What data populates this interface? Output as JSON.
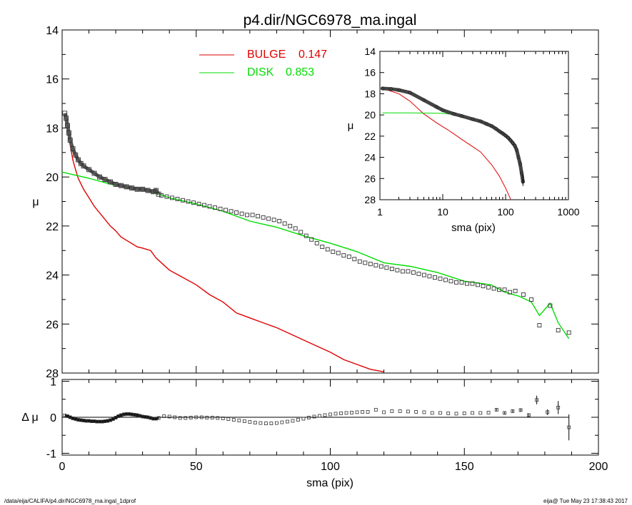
{
  "title": "p4.dir/NGC6978_ma.ingal",
  "footer": {
    "path": "/data/eija/CALIFA/p4.dir/NGC6978_ma.ingal_1dprof",
    "stamp": "eija@  Tue May 23 17:38:43 2017"
  },
  "colors": {
    "bulge": "#e00000",
    "disk": "#00dd00",
    "data": "#000000"
  },
  "chart_data": [
    {
      "type": "line",
      "panel": "main",
      "title": "p4.dir/NGC6978_ma.ingal",
      "xlabel": "",
      "ylabel": "μ",
      "xlim": [
        0,
        200
      ],
      "ylim": [
        28,
        14
      ],
      "y_inverted": true,
      "x_ticks": [
        0,
        50,
        100,
        150,
        200
      ],
      "y_ticks": [
        14,
        16,
        18,
        20,
        22,
        24,
        26,
        28
      ],
      "legend": {
        "placement": "top-center",
        "entries": [
          {
            "label": "BULGE",
            "value": "0.147",
            "color": "#e00000"
          },
          {
            "label": "DISK",
            "value": "0.853",
            "color": "#00dd00"
          }
        ]
      },
      "series": [
        {
          "name": "BULGE",
          "style": "line",
          "x": [
            1,
            2,
            3,
            4,
            5,
            6,
            8,
            10,
            12,
            15,
            18,
            20,
            22,
            25,
            28,
            30,
            33,
            35,
            38,
            40,
            45,
            50,
            55,
            60,
            65,
            70,
            75,
            80,
            85,
            90,
            95,
            100,
            105,
            110,
            115,
            120
          ],
          "y": [
            17.4,
            18.1,
            18.7,
            19.3,
            19.7,
            20.05,
            20.5,
            20.85,
            21.2,
            21.6,
            22.0,
            22.2,
            22.45,
            22.65,
            22.85,
            22.9,
            23.0,
            23.3,
            23.6,
            23.8,
            24.1,
            24.4,
            24.8,
            25.1,
            25.55,
            25.75,
            25.95,
            26.15,
            26.4,
            26.65,
            26.9,
            27.15,
            27.45,
            27.65,
            27.85,
            27.95
          ]
        },
        {
          "name": "DISK",
          "style": "line",
          "x": [
            0,
            10,
            20,
            30,
            35,
            40,
            50,
            60,
            70,
            80,
            90,
            100,
            110,
            120,
            130,
            140,
            150,
            160,
            165,
            170,
            175,
            178,
            182,
            185,
            189
          ],
          "y": [
            19.8,
            20.05,
            20.35,
            20.55,
            20.65,
            20.85,
            21.1,
            21.4,
            21.8,
            22.05,
            22.4,
            22.7,
            23.05,
            23.5,
            23.65,
            23.9,
            24.25,
            24.4,
            24.7,
            24.85,
            25.1,
            25.65,
            25.15,
            25.95,
            26.6
          ]
        },
        {
          "name": "data",
          "style": "points-dense",
          "x": [
            1,
            1.5,
            2,
            2.5,
            3,
            4,
            5,
            6,
            7,
            8,
            10,
            12,
            14,
            16,
            18,
            20,
            22,
            24,
            26,
            28,
            30,
            32,
            34,
            35,
            36
          ],
          "y": [
            17.4,
            17.6,
            17.9,
            18.2,
            18.5,
            18.85,
            19.1,
            19.3,
            19.45,
            19.55,
            19.7,
            19.85,
            20.0,
            20.1,
            20.2,
            20.3,
            20.35,
            20.4,
            20.45,
            20.5,
            20.5,
            20.55,
            20.6,
            20.55,
            20.7
          ]
        },
        {
          "name": "data",
          "style": "points-sparse",
          "x": [
            37,
            39,
            41,
            43,
            45,
            47,
            49,
            51,
            53,
            55,
            57,
            59,
            61,
            63,
            65,
            67,
            69,
            71,
            73,
            75,
            77,
            79,
            81,
            83,
            85,
            87,
            89,
            91,
            93,
            95,
            97,
            99,
            101,
            103,
            105,
            107,
            109,
            111,
            113,
            115,
            117,
            119,
            121,
            123,
            125,
            127,
            129,
            131,
            133,
            135,
            137,
            139,
            141,
            143,
            145,
            147,
            149,
            151,
            153,
            155,
            157,
            159,
            161,
            163,
            165,
            167,
            169,
            172,
            175,
            178,
            182,
            185,
            189
          ],
          "y": [
            20.75,
            20.8,
            20.85,
            20.9,
            20.95,
            21.0,
            21.05,
            21.1,
            21.15,
            21.2,
            21.25,
            21.3,
            21.35,
            21.4,
            21.45,
            21.5,
            21.55,
            21.55,
            21.6,
            21.65,
            21.7,
            21.75,
            21.8,
            21.9,
            22.0,
            22.1,
            22.25,
            22.4,
            22.55,
            22.7,
            22.85,
            22.95,
            23.05,
            23.1,
            23.2,
            23.25,
            23.35,
            23.45,
            23.5,
            23.55,
            23.6,
            23.65,
            23.7,
            23.75,
            23.8,
            23.85,
            23.85,
            23.9,
            23.95,
            24.0,
            24.05,
            24.1,
            24.15,
            24.2,
            24.25,
            24.3,
            24.3,
            24.35,
            24.35,
            24.4,
            24.45,
            24.5,
            24.55,
            24.6,
            24.6,
            24.7,
            24.65,
            24.8,
            25.0,
            26.05,
            25.25,
            26.25,
            26.35
          ]
        }
      ]
    },
    {
      "type": "line",
      "panel": "inset",
      "xlabel": "sma (pix)",
      "ylabel": "μ",
      "xscale": "log",
      "xlim": [
        1,
        1000
      ],
      "ylim": [
        28,
        14
      ],
      "y_inverted": true,
      "x_ticks": [
        1,
        10,
        100,
        1000
      ],
      "y_ticks": [
        14,
        16,
        18,
        20,
        22,
        24,
        26,
        28
      ],
      "series": [
        {
          "name": "BULGE",
          "style": "line",
          "x": [
            1.1,
            2,
            3,
            5,
            8,
            12,
            20,
            30,
            40,
            60,
            80,
            100,
            120
          ],
          "y": [
            17.5,
            18.0,
            18.7,
            19.9,
            20.75,
            21.4,
            22.3,
            23.0,
            23.5,
            24.7,
            25.8,
            26.9,
            27.95
          ]
        },
        {
          "name": "DISK",
          "style": "line",
          "x": [
            1.1,
            3,
            10,
            20,
            30,
            40
          ],
          "y": [
            19.8,
            19.8,
            19.85,
            20.05,
            20.35,
            20.55
          ]
        },
        {
          "name": "data",
          "style": "thick",
          "x": [
            1.1,
            1.5,
            2,
            3,
            5,
            8,
            10,
            15,
            20,
            30,
            40,
            50,
            60,
            70,
            80,
            90,
            100,
            110,
            120,
            130,
            140,
            150,
            160,
            170,
            180,
            189
          ],
          "y": [
            17.5,
            17.55,
            17.65,
            17.9,
            18.6,
            19.25,
            19.55,
            19.9,
            20.1,
            20.4,
            20.6,
            20.85,
            21.05,
            21.3,
            21.55,
            21.75,
            21.95,
            22.15,
            22.4,
            22.65,
            22.9,
            23.3,
            24.0,
            24.6,
            25.5,
            26.3
          ]
        }
      ]
    },
    {
      "type": "scatter",
      "panel": "residual",
      "xlabel": "sma (pix)",
      "ylabel": "Δ μ",
      "xlim": [
        0,
        200
      ],
      "ylim": [
        -1.05,
        1.05
      ],
      "x_ticks": [
        0,
        50,
        100,
        150,
        200
      ],
      "y_ticks": [
        -1,
        0,
        1
      ],
      "reference_line": 0,
      "series": [
        {
          "name": "residual",
          "style": "points-dense",
          "x": [
            1,
            2,
            3,
            4,
            5,
            6,
            7,
            8,
            9,
            10,
            11,
            12,
            13,
            14,
            15,
            16,
            17,
            18,
            19,
            20,
            21,
            22,
            23,
            24,
            25,
            26,
            27,
            28,
            29,
            30,
            31,
            32,
            33,
            34,
            35,
            36
          ],
          "y": [
            0.05,
            0.03,
            0.0,
            -0.03,
            -0.05,
            -0.07,
            -0.08,
            -0.09,
            -0.1,
            -0.1,
            -0.11,
            -0.11,
            -0.12,
            -0.12,
            -0.12,
            -0.11,
            -0.1,
            -0.08,
            -0.05,
            -0.01,
            0.03,
            0.06,
            0.08,
            0.09,
            0.09,
            0.08,
            0.07,
            0.06,
            0.04,
            0.02,
            0.01,
            0.0,
            -0.02,
            -0.04,
            -0.04,
            -0.02
          ]
        },
        {
          "name": "residual",
          "style": "points-sparse",
          "x": [
            38,
            40,
            42,
            44,
            46,
            48,
            50,
            52,
            54,
            56,
            58,
            60,
            62,
            64,
            66,
            68,
            70,
            72,
            74,
            76,
            78,
            80,
            82,
            84,
            86,
            88,
            90,
            92,
            94,
            96,
            98,
            100,
            102,
            104,
            106,
            108,
            110,
            112,
            114,
            117,
            120,
            123,
            126,
            129,
            132,
            135,
            138,
            141,
            144,
            147,
            150,
            153,
            156,
            159,
            162,
            165,
            168,
            171,
            174,
            177,
            181,
            185,
            189
          ],
          "y": [
            0.03,
            0.02,
            0.0,
            -0.02,
            -0.02,
            -0.01,
            0.0,
            0.0,
            -0.01,
            -0.01,
            -0.02,
            -0.03,
            -0.05,
            -0.07,
            -0.09,
            -0.11,
            -0.13,
            -0.15,
            -0.16,
            -0.17,
            -0.17,
            -0.16,
            -0.14,
            -0.12,
            -0.1,
            -0.07,
            -0.04,
            -0.01,
            0.02,
            0.04,
            0.06,
            0.08,
            0.1,
            0.11,
            0.12,
            0.13,
            0.14,
            0.15,
            0.15,
            0.21,
            0.14,
            0.17,
            0.17,
            0.16,
            0.15,
            0.14,
            0.12,
            0.12,
            0.11,
            0.1,
            0.11,
            0.12,
            0.12,
            0.13,
            0.21,
            0.12,
            0.17,
            0.2,
            0.06,
            0.48,
            0.14,
            0.27,
            -0.28
          ],
          "err": [
            0,
            0,
            0,
            0,
            0,
            0,
            0,
            0,
            0,
            0,
            0,
            0,
            0,
            0,
            0,
            0,
            0,
            0,
            0,
            0,
            0,
            0,
            0,
            0,
            0,
            0,
            0,
            0,
            0,
            0,
            0,
            0,
            0,
            0,
            0,
            0,
            0,
            0,
            0,
            0,
            0,
            0,
            0,
            0,
            0,
            0,
            0,
            0,
            0,
            0,
            0,
            0,
            0,
            0,
            0.03,
            0.03,
            0.04,
            0.04,
            0.05,
            0.12,
            0.08,
            0.18,
            0.36
          ]
        }
      ]
    }
  ]
}
